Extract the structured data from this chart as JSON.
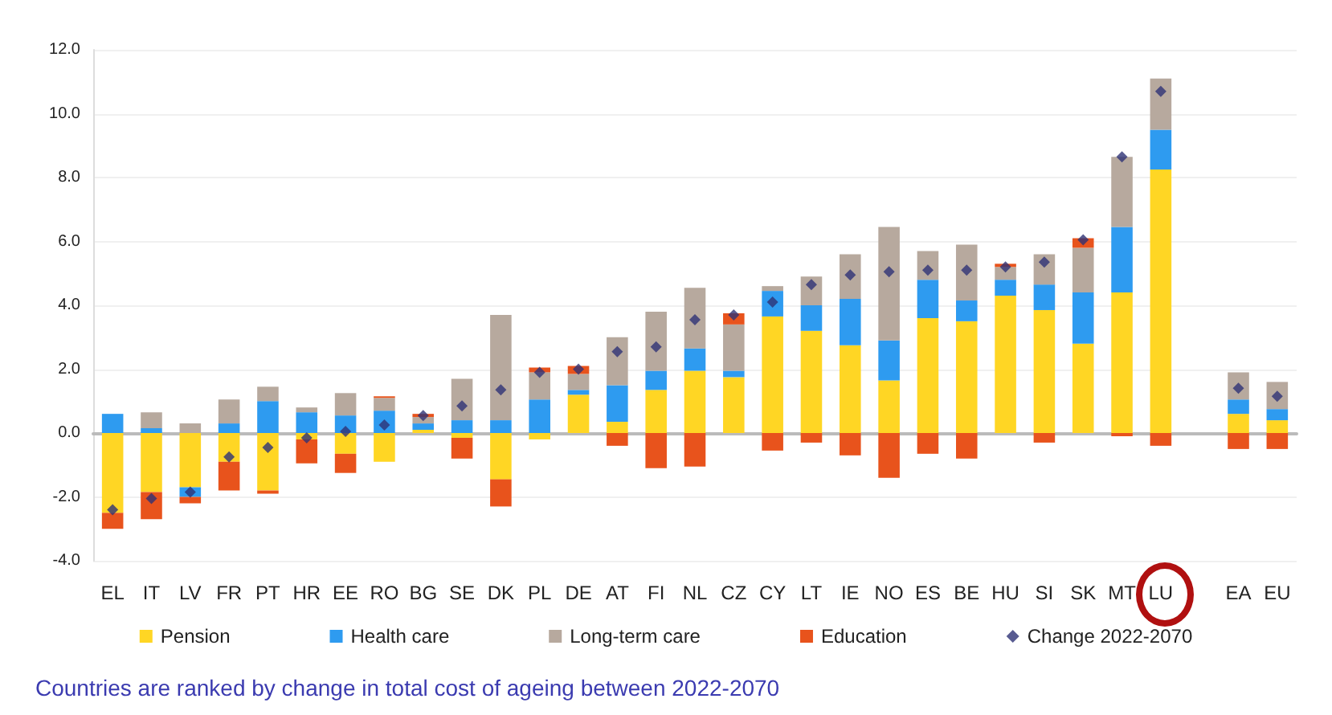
{
  "chart_data": {
    "type": "bar",
    "stacked": true,
    "categories": [
      "EL",
      "IT",
      "LV",
      "FR",
      "PT",
      "HR",
      "EE",
      "RO",
      "BG",
      "SE",
      "DK",
      "PL",
      "DE",
      "AT",
      "FI",
      "NL",
      "CZ",
      "CY",
      "LT",
      "IE",
      "NO",
      "ES",
      "BE",
      "HU",
      "SI",
      "SK",
      "MT",
      "LU",
      null,
      "EA",
      "EU"
    ],
    "series": [
      {
        "name": "Pension",
        "color": "#ffd624",
        "values": [
          -2.5,
          -1.85,
          -1.7,
          -0.9,
          -1.8,
          -0.2,
          -0.65,
          -0.9,
          0.1,
          -0.15,
          -1.45,
          -0.2,
          1.2,
          0.35,
          1.35,
          1.95,
          1.75,
          3.65,
          3.2,
          2.75,
          1.65,
          3.6,
          3.5,
          4.3,
          3.85,
          2.8,
          4.4,
          8.25,
          null,
          0.6,
          0.4
        ]
      },
      {
        "name": "Health care",
        "color": "#2e9bf0",
        "values": [
          0.6,
          0.15,
          -0.3,
          0.3,
          1.0,
          0.65,
          0.55,
          0.7,
          0.2,
          0.4,
          0.4,
          1.05,
          0.15,
          1.15,
          0.6,
          0.7,
          0.2,
          0.8,
          0.8,
          1.45,
          1.25,
          1.2,
          0.65,
          0.5,
          0.8,
          1.6,
          2.05,
          1.25,
          null,
          0.45,
          0.35
        ]
      },
      {
        "name": "Long-term care",
        "color": "#b7a99e",
        "values": [
          0,
          0.5,
          0.3,
          0.75,
          0.45,
          0.15,
          0.7,
          0.4,
          0.2,
          1.3,
          3.3,
          0.85,
          0.5,
          1.5,
          1.85,
          1.9,
          1.45,
          0.15,
          0.9,
          1.4,
          3.55,
          0.9,
          1.75,
          0.4,
          0.95,
          1.4,
          2.2,
          1.6,
          null,
          0.85,
          0.85
        ]
      },
      {
        "name": "Education",
        "color": "#e8531c",
        "values": [
          -0.5,
          -0.85,
          -0.2,
          -0.9,
          -0.1,
          -0.75,
          -0.6,
          0.05,
          0.1,
          -0.65,
          -0.85,
          0.15,
          0.25,
          -0.4,
          -1.1,
          -1.05,
          0.35,
          -0.55,
          -0.3,
          -0.7,
          -1.4,
          -0.65,
          -0.8,
          0.1,
          -0.3,
          0.3,
          -0.1,
          -0.4,
          null,
          -0.5,
          -0.5
        ]
      },
      {
        "name": "Change 2022-2070",
        "type": "scatter",
        "color": "#2e3275",
        "values": [
          -2.4,
          -2.05,
          -1.85,
          -0.75,
          -0.45,
          -0.15,
          0.05,
          0.25,
          0.55,
          0.85,
          1.35,
          1.9,
          2.0,
          2.55,
          2.7,
          3.55,
          3.7,
          4.1,
          4.65,
          4.95,
          5.05,
          5.1,
          5.1,
          5.2,
          5.35,
          6.05,
          8.65,
          10.7,
          null,
          1.4,
          1.15
        ]
      }
    ],
    "ylim": [
      -4,
      12
    ],
    "yticks": [
      {
        "value": -4,
        "label": "-4.0"
      },
      {
        "value": -2,
        "label": "-2.0"
      },
      {
        "value": 0,
        "label": "0.0"
      },
      {
        "value": 2,
        "label": "2.0"
      },
      {
        "value": 4,
        "label": "4.0"
      },
      {
        "value": 6,
        "label": "6.0"
      },
      {
        "value": 8,
        "label": "8.0"
      },
      {
        "value": 10,
        "label": "10.0"
      },
      {
        "value": 12,
        "label": "12.0"
      }
    ],
    "grid": "y",
    "legend": "bottom",
    "marker": "diamond",
    "annotations": [
      "Countries are ranked by change in total cost of ageing between 2022-2070"
    ]
  }
}
